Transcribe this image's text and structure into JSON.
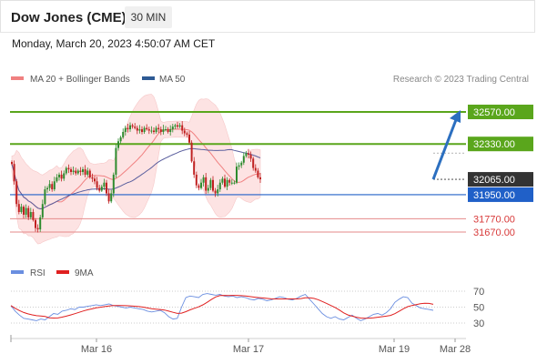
{
  "header": {
    "title": "Dow Jones (CME)",
    "timeframe": "30 MIN",
    "datetime": "Monday, March 20, 2023 4:50:07 AM CET"
  },
  "legend": {
    "bollinger": "MA 20 + Bollinger Bands",
    "ma50": "MA 50",
    "credit": "Research © 2023 Trading Central",
    "rsi": "RSI",
    "rsi_ma": "9MA"
  },
  "colors": {
    "resistance": "#5aa61c",
    "support": "#2060c8",
    "current": "#333333",
    "lower": "#d83a3a",
    "up_candle": "#2e8b2e",
    "down_candle": "#c02020",
    "bollinger_fill": "#fde3e3",
    "ma20": "#f08080",
    "ma50": "#5b5f9e",
    "arrow": "#2c6fc0",
    "rsi_line": "#6a8ee0",
    "rsi_ma_line": "#e02020"
  },
  "chart_data": {
    "type": "candlestick",
    "price_levels": [
      {
        "label": "32570.00",
        "value": 32570,
        "kind": "resistance"
      },
      {
        "label": "32330.00",
        "value": 32330,
        "kind": "resistance"
      },
      {
        "label": "32065.00",
        "value": 32065,
        "kind": "current"
      },
      {
        "label": "31950.00",
        "value": 31950,
        "kind": "support"
      },
      {
        "label": "31770.00",
        "value": 31770,
        "kind": "lower"
      },
      {
        "label": "31670.00",
        "value": 31670,
        "kind": "lower"
      }
    ],
    "x_ticks": [
      "Mar 16",
      "Mar 17",
      "Mar 19",
      "Mar 28"
    ],
    "rsi_ticks": [
      "70",
      "50",
      "30"
    ],
    "rsi_levels": [
      70,
      50,
      30
    ],
    "closes": [
      32180,
      32050,
      31880,
      31820,
      31860,
      31800,
      31850,
      31780,
      31820,
      31760,
      31700,
      31690,
      31780,
      31880,
      31990,
      32000,
      32030,
      31990,
      32050,
      32080,
      32100,
      32070,
      32110,
      32150,
      32140,
      32120,
      32130,
      32110,
      32130,
      32120,
      32140,
      32100,
      32130,
      32080,
      32070,
      32050,
      32000,
      31980,
      32010,
      32040,
      31960,
      31900,
      31960,
      32100,
      32300,
      32350,
      32380,
      32420,
      32450,
      32440,
      32470,
      32460,
      32450,
      32430,
      32440,
      32420,
      32450,
      32440,
      32430,
      32430,
      32420,
      32450,
      32440,
      32420,
      32440,
      32440,
      32420,
      32440,
      32460,
      32470,
      32460,
      32470,
      32430,
      32410,
      32400,
      32340,
      32200,
      32100,
      32020,
      32000,
      32040,
      32080,
      31980,
      32000,
      32060,
      31980,
      31960,
      31990,
      32040,
      32070,
      32010,
      32060,
      32040,
      32040,
      32040,
      32160,
      32170,
      32190,
      32240,
      32260,
      32250,
      32220,
      32150,
      32130,
      32080,
      32065
    ],
    "rsi": [
      52,
      45,
      40,
      36,
      35,
      34,
      33,
      35,
      34,
      38,
      42,
      41,
      45,
      46,
      48,
      47,
      50,
      50,
      51,
      52,
      53,
      52,
      53,
      54,
      52,
      51,
      50,
      49,
      50,
      49,
      48,
      47,
      45,
      44,
      45,
      46,
      43,
      38,
      35,
      36,
      50,
      62,
      64,
      63,
      62,
      66,
      67,
      66,
      65,
      66,
      64,
      63,
      64,
      62,
      63,
      62,
      60,
      59,
      61,
      60,
      58,
      59,
      61,
      63,
      62,
      60,
      59,
      61,
      64,
      66,
      60,
      54,
      48,
      42,
      38,
      36,
      38,
      35,
      34,
      37,
      40,
      36,
      33,
      35,
      38,
      41,
      42,
      40,
      43,
      48,
      56,
      60,
      63,
      62,
      55,
      52,
      49,
      48,
      47,
      46
    ]
  }
}
